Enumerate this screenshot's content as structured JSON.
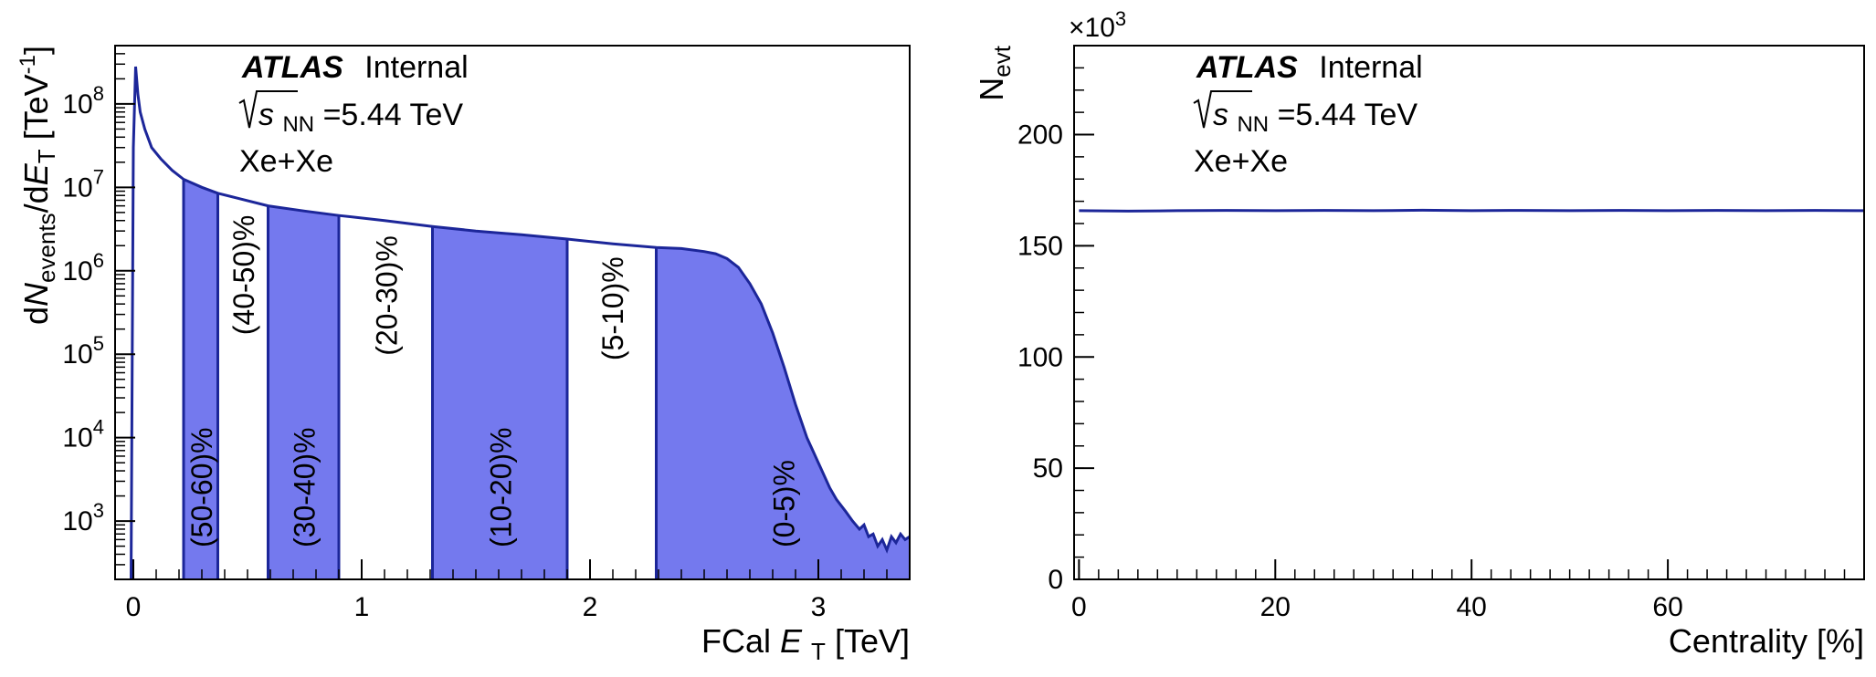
{
  "chart_data": [
    {
      "type": "area",
      "experiment": "ATLAS",
      "status": "Internal",
      "energy_symbol": "s",
      "energy_sub": "NN",
      "energy_value": "=5.44 TeV",
      "system": "Xe+Xe",
      "xlabel": {
        "pre": "FCal ",
        "var": "E",
        "sub": "T",
        "post": " [TeV]"
      },
      "ylabel": {
        "d1": "d",
        "n": "N",
        "events": "events",
        "d2": "/d",
        "e": "E",
        "t": "T",
        "unit": " [TeV",
        "exp": "-1",
        "close": "]"
      },
      "xlim": [
        -0.08,
        3.4
      ],
      "ylim": [
        200,
        500000000
      ],
      "yscale": "log",
      "x_ticks": [
        "0",
        "1",
        "2",
        "3"
      ],
      "y_ticks": [
        {
          "base": "10",
          "exp": "3",
          "value": 1000
        },
        {
          "base": "10",
          "exp": "4",
          "value": 10000
        },
        {
          "base": "10",
          "exp": "5",
          "value": 100000
        },
        {
          "base": "10",
          "exp": "6",
          "value": 1000000
        },
        {
          "base": "10",
          "exp": "7",
          "value": 10000000
        },
        {
          "base": "10",
          "exp": "8",
          "value": 100000000
        }
      ],
      "series": [
        {
          "x": [
            -0.01,
            0.0,
            0.01,
            0.02,
            0.03,
            0.05,
            0.08,
            0.12,
            0.17,
            0.22,
            0.3,
            0.37,
            0.45,
            0.59,
            0.75,
            0.9,
            1.1,
            1.31,
            1.5,
            1.7,
            1.9,
            2.1,
            2.29,
            2.4,
            2.5,
            2.55,
            2.6,
            2.65,
            2.7,
            2.75,
            2.8,
            2.85,
            2.9,
            2.95,
            3.0,
            3.05,
            3.08,
            3.12,
            3.15,
            3.18,
            3.2,
            3.22,
            3.24,
            3.26,
            3.28,
            3.3,
            3.32,
            3.34,
            3.36,
            3.38,
            3.4
          ],
          "y": [
            200,
            30000000,
            280000000,
            130000000,
            80000000,
            50000000,
            30000000,
            22000000,
            16000000,
            12500000,
            10000000,
            8500000,
            7500000,
            6000000,
            5200000,
            4600000,
            4000000,
            3400000,
            3000000,
            2700000,
            2400000,
            2100000,
            1900000,
            1850000,
            1700000,
            1600000,
            1400000,
            1100000,
            700000,
            400000,
            180000,
            70000,
            25000,
            10000,
            5000,
            2500,
            1800,
            1300,
            1000,
            800,
            900,
            650,
            700,
            500,
            600,
            450,
            650,
            550,
            700,
            600,
            650
          ]
        }
      ],
      "centrality_bins": [
        {
          "label": "(50-60)%",
          "x0": 0.22,
          "x1": 0.37,
          "filled": true
        },
        {
          "label": "(40-50)%",
          "x0": 0.37,
          "x1": 0.59,
          "filled": false
        },
        {
          "label": "(30-40)%",
          "x0": 0.59,
          "x1": 0.9,
          "filled": true
        },
        {
          "label": "(20-30)%",
          "x0": 0.9,
          "x1": 1.31,
          "filled": false
        },
        {
          "label": "(10-20)%",
          "x0": 1.31,
          "x1": 1.9,
          "filled": true
        },
        {
          "label": "(5-10)%",
          "x0": 1.9,
          "x1": 2.29,
          "filled": false
        },
        {
          "label": "(0-5)%",
          "x0": 2.29,
          "x1": 3.4,
          "filled": true
        }
      ],
      "colors": {
        "line": "#1c2699",
        "fill": "#7479ee"
      }
    },
    {
      "type": "line",
      "experiment": "ATLAS",
      "status": "Internal",
      "energy_symbol": "s",
      "energy_sub": "NN",
      "energy_value": "=5.44 TeV",
      "system": "Xe+Xe",
      "xlabel": "Centrality [%]",
      "ylabel": {
        "base": "N",
        "sub": "evt"
      },
      "multiplier": {
        "pre": "×10",
        "exp": "3"
      },
      "xlim": [
        -0.5,
        80
      ],
      "ylim": [
        0,
        240
      ],
      "x_ticks": [
        0,
        20,
        40,
        60
      ],
      "y_ticks": [
        0,
        50,
        100,
        150,
        200
      ],
      "series": [
        {
          "x": [
            0,
            5,
            10,
            15,
            20,
            25,
            30,
            35,
            40,
            45,
            50,
            55,
            60,
            65,
            70,
            75,
            80
          ],
          "y": [
            165.8,
            165.6,
            165.8,
            165.9,
            165.8,
            165.9,
            165.8,
            166.0,
            165.8,
            165.9,
            165.8,
            165.9,
            165.8,
            165.9,
            165.8,
            165.9,
            165.8
          ]
        }
      ],
      "colors": {
        "line": "#1c2699"
      }
    }
  ]
}
